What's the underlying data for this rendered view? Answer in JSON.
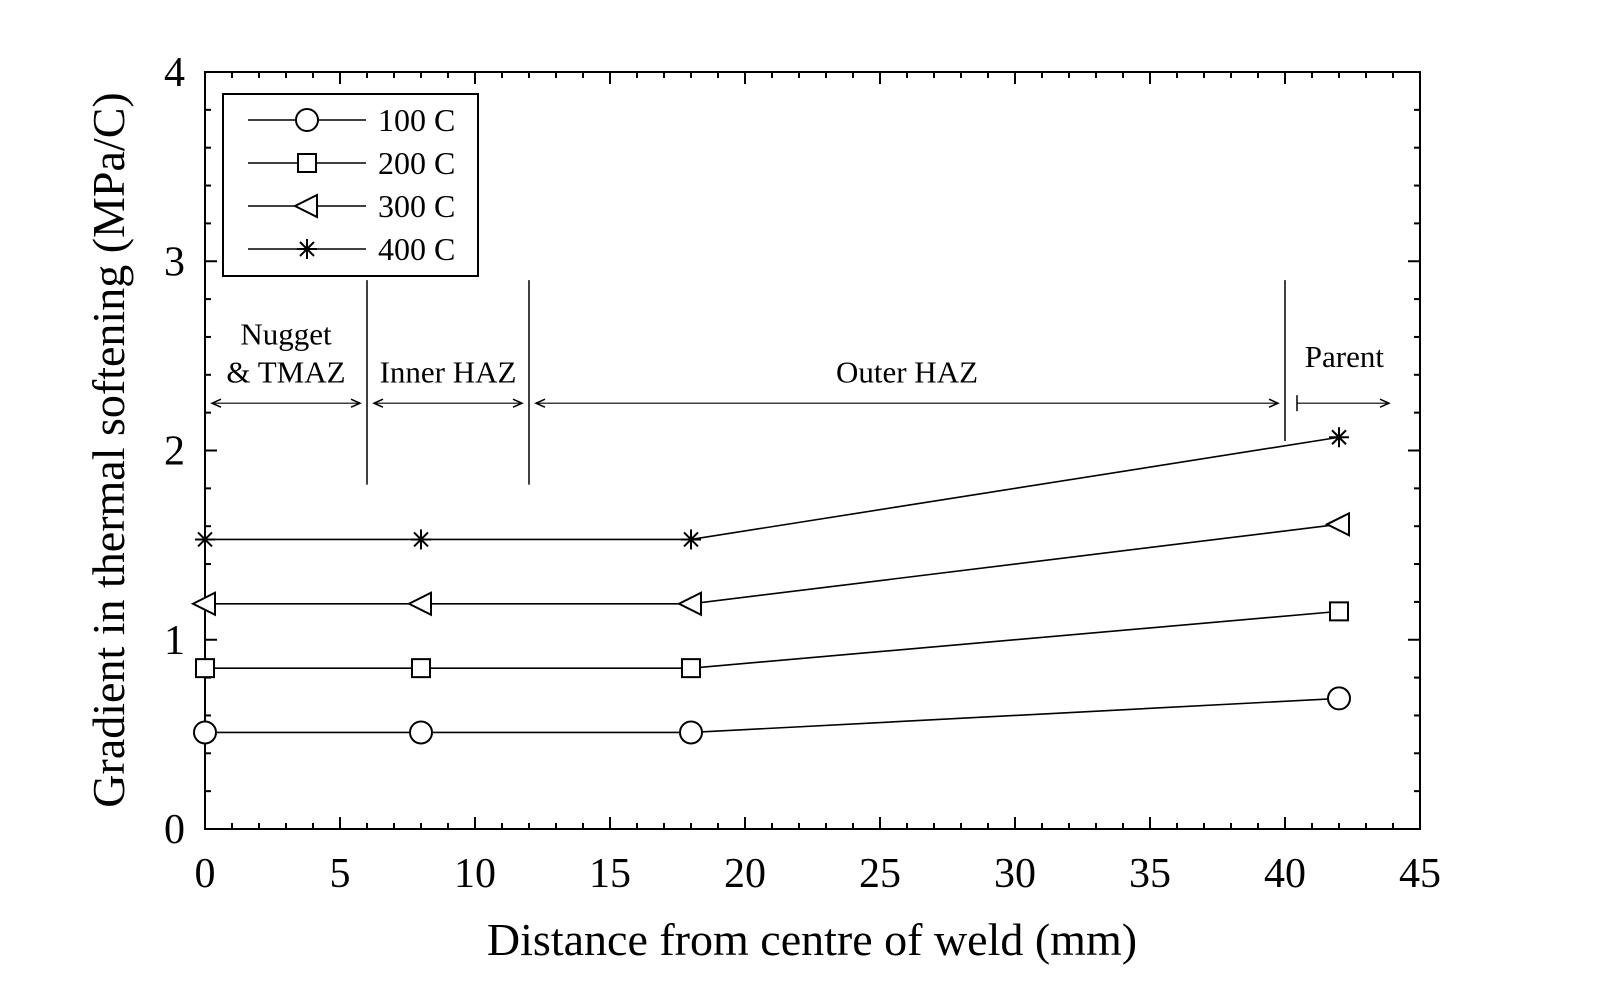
{
  "chart_data": {
    "type": "line",
    "title": "",
    "xlabel": "Distance from centre of weld (mm)",
    "ylabel": "Gradient in thermal softening (MPa/C)",
    "xlim": [
      0,
      45
    ],
    "ylim": [
      0,
      4
    ],
    "x_ticks": [
      0,
      5,
      10,
      15,
      20,
      25,
      30,
      35,
      40,
      45
    ],
    "y_ticks": [
      0,
      1,
      2,
      3,
      4
    ],
    "x_tick_labels": [
      "0",
      "5",
      "10",
      "15",
      "20",
      "25",
      "30",
      "35",
      "40",
      "45"
    ],
    "y_tick_labels": [
      "0",
      "1",
      "2",
      "3",
      "4"
    ],
    "grid": false,
    "legend_position": "top-left",
    "series": [
      {
        "name": "100 C",
        "marker": "circle",
        "x": [
          0,
          8,
          18,
          42
        ],
        "y": [
          0.51,
          0.51,
          0.51,
          0.69
        ]
      },
      {
        "name": "200 C",
        "marker": "square",
        "x": [
          0,
          8,
          18,
          42
        ],
        "y": [
          0.85,
          0.85,
          0.85,
          1.15
        ]
      },
      {
        "name": "300 C",
        "marker": "triangle",
        "x": [
          0,
          8,
          18,
          42
        ],
        "y": [
          1.19,
          1.19,
          1.19,
          1.61
        ]
      },
      {
        "name": "400 C",
        "marker": "star",
        "x": [
          0,
          8,
          18,
          42
        ],
        "y": [
          1.53,
          1.53,
          1.53,
          2.07
        ]
      }
    ],
    "regions": [
      {
        "lines": [
          "Nugget",
          "& TMAZ"
        ],
        "x_start": 0,
        "x_end": 6
      },
      {
        "lines": [
          "Inner HAZ"
        ],
        "x_start": 6,
        "x_end": 12
      },
      {
        "lines": [
          "Outer HAZ"
        ],
        "x_start": 12,
        "x_end": 40
      },
      {
        "lines": [
          "Parent"
        ],
        "x_start": 40,
        "x_end": 45
      }
    ],
    "boundaries_x": [
      6,
      12,
      40
    ]
  },
  "colors": {
    "line": "#000000",
    "background": "#ffffff"
  }
}
